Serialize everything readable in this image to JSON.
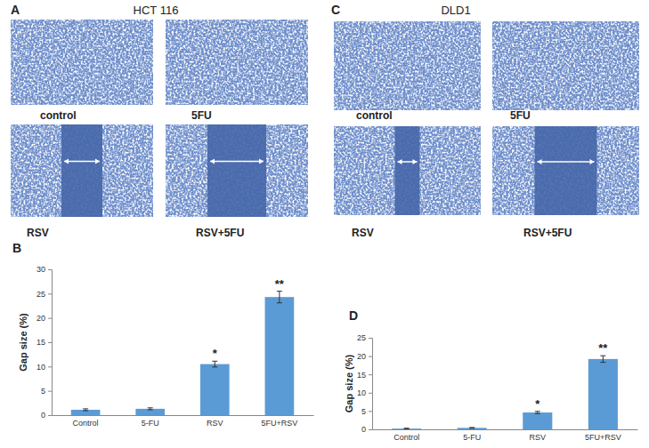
{
  "chart_data": [
    {
      "type": "bar",
      "categories": [
        "Control",
        "5-FU",
        "RSV",
        "5FU+RSV"
      ],
      "values": [
        1.1,
        1.3,
        10.5,
        24.3
      ],
      "errors": [
        0.2,
        0.2,
        0.6,
        1.2
      ],
      "color": "#5b9bd5",
      "y_label": "Gap size (%)",
      "ylim": [
        0,
        30
      ],
      "yticks": [
        0,
        5,
        10,
        15,
        20,
        25,
        30
      ],
      "grid": false,
      "annotations": [
        {
          "text": "*",
          "x": "RSV"
        },
        {
          "text": "**",
          "x": "5FU+RSV"
        }
      ]
    },
    {
      "type": "bar",
      "categories": [
        "Control",
        "5-FU",
        "RSV",
        "5FU+RSV"
      ],
      "values": [
        0.2,
        0.4,
        4.6,
        19.2
      ],
      "errors": [
        0.1,
        0.1,
        0.3,
        0.9
      ],
      "color": "#5b9bd5",
      "y_label": "Gap size (%)",
      "ylim": [
        0,
        25
      ],
      "yticks": [
        0,
        5,
        10,
        15,
        20,
        25
      ],
      "grid": false,
      "annotations": [
        {
          "text": "*",
          "x": "RSV"
        },
        {
          "text": "**",
          "x": "5FU+RSV"
        }
      ]
    }
  ],
  "figure": {
    "panel_labels": [
      "A",
      "B",
      "C",
      "D"
    ],
    "image_panels": [
      {
        "title": "HCT 116",
        "captions": [
          "control",
          "5FU",
          "RSV",
          "RSV+5FU"
        ]
      },
      {
        "title": "DLD1",
        "captions": [
          "control",
          "5FU",
          "RSV",
          "RSV+5FU"
        ]
      }
    ]
  }
}
